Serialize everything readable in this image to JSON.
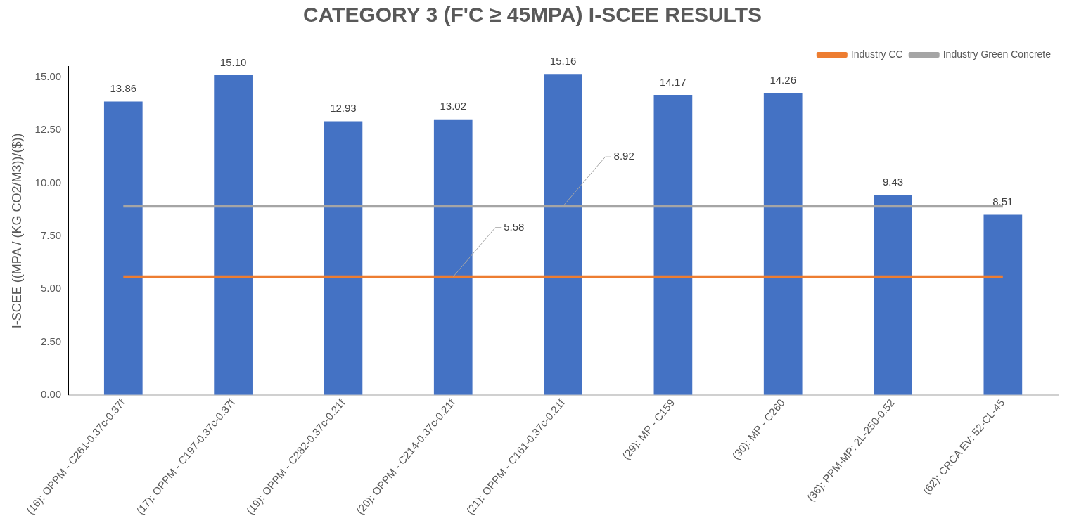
{
  "chart_data": {
    "type": "bar",
    "title": "CATEGORY 3 (F'C ≥ 45MPA) I-SCEE RESULTS",
    "ylabel": "I-SCEE ((MPA / (KG CO2/M3))/($))",
    "categories": [
      "(16): OPPM - C261-0.37c-0.37f",
      "(17): OPPM - C197-0.37c-0.37f",
      "(19): OPPM - C282-0.37c-0.21f",
      "(20): OPPM - C214-0.37c-0.21f",
      "(21): OPPM - C161-0.37c-0.21f",
      "(29): MP - C159",
      "(30): MP - C260",
      "(36): PPM-MP: 2L-250-0.52",
      "(62): CRCA EV: 52-CL-45"
    ],
    "series": [
      {
        "color": "#4472c4",
        "values": [
          13.86,
          15.1,
          12.93,
          13.02,
          15.16,
          14.17,
          14.26,
          9.43,
          8.51
        ],
        "value_labels": [
          "13.86",
          "15.10",
          "12.93",
          "13.02",
          "15.16",
          "14.17",
          "14.26",
          "9.43",
          "8.51"
        ]
      },
      {
        "type": "line",
        "name": "Industry CC",
        "color": "#ed7d31",
        "values": [
          5.58,
          5.58,
          5.58,
          5.58,
          5.58,
          5.58,
          5.58,
          5.58,
          5.58
        ],
        "value_labels": [
          null,
          null,
          null,
          "5.58",
          null,
          null,
          null,
          null,
          null
        ]
      },
      {
        "type": "line",
        "name": "Industry Green Concrete",
        "color": "#a5a5a5",
        "values": [
          8.92,
          8.92,
          8.92,
          8.92,
          8.92,
          8.92,
          8.92,
          8.92,
          8.92
        ],
        "value_labels": [
          null,
          null,
          null,
          null,
          "8.92",
          null,
          null,
          null,
          null
        ]
      }
    ],
    "ylim": [
      0,
      15.5
    ],
    "yticks": [
      {
        "value": 0,
        "label": "0.00"
      },
      {
        "value": 2.5,
        "label": "2.50"
      },
      {
        "value": 5,
        "label": "5.00"
      },
      {
        "value": 7.5,
        "label": "7.50"
      },
      {
        "value": 10,
        "label": "10.00"
      },
      {
        "value": 12.5,
        "label": "12.50"
      },
      {
        "value": 15,
        "label": "15.00"
      }
    ],
    "grid": false,
    "legend": "top right",
    "marker": "none",
    "line_style": "solid"
  }
}
